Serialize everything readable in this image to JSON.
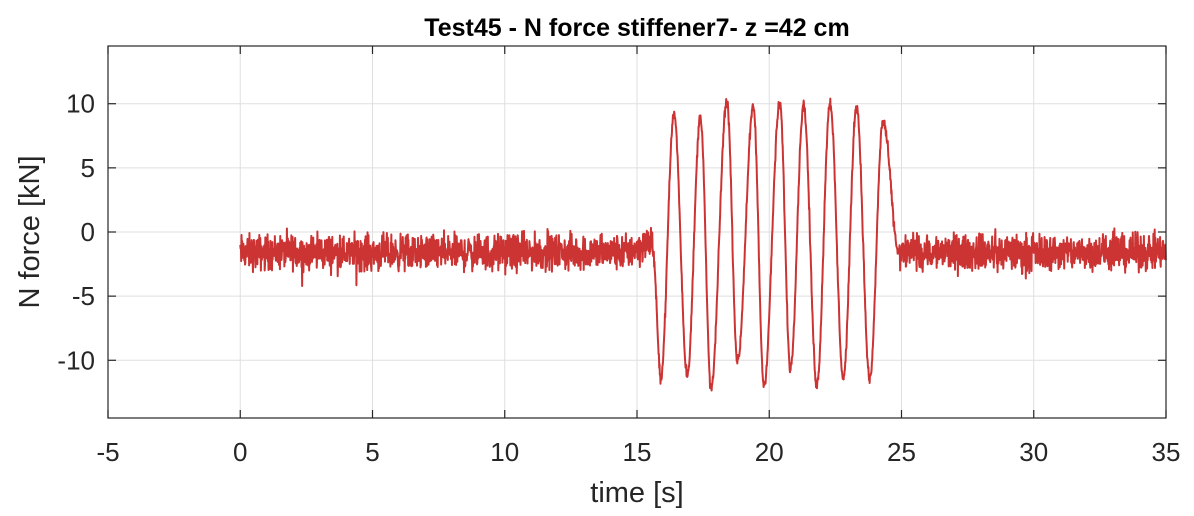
{
  "chart_data": {
    "type": "line",
    "title": "Test45 - N force stiffener7- z =42 cm",
    "xlabel": "time [s]",
    "ylabel": "N force [kN]",
    "xlim": [
      -5,
      35
    ],
    "ylim": [
      -14.5,
      14.5
    ],
    "xticks": [
      -5,
      0,
      5,
      10,
      15,
      20,
      25,
      30,
      35
    ],
    "yticks": [
      -10,
      -5,
      0,
      5,
      10
    ],
    "grid": true,
    "series_color": "#cc3333",
    "signal": {
      "start": 0,
      "end": 35,
      "baseline_mean": -1.6,
      "baseline_noise_range": [
        -4.5,
        2.3
      ],
      "oscillation_start": 15.6,
      "oscillation_end": 24.9,
      "oscillation_peaks": [
        {
          "t": 16.4,
          "value": 9.2
        },
        {
          "t": 17.4,
          "value": 9.0
        },
        {
          "t": 18.4,
          "value": 10.2
        },
        {
          "t": 19.4,
          "value": 9.7
        },
        {
          "t": 20.4,
          "value": 10.0
        },
        {
          "t": 21.3,
          "value": 9.9
        },
        {
          "t": 22.3,
          "value": 10.1
        },
        {
          "t": 23.3,
          "value": 9.8
        },
        {
          "t": 24.3,
          "value": 8.6
        }
      ],
      "oscillation_troughs": [
        {
          "t": 15.9,
          "value": -11.3
        },
        {
          "t": 16.9,
          "value": -11.1
        },
        {
          "t": 17.8,
          "value": -12.2
        },
        {
          "t": 18.8,
          "value": -10.1
        },
        {
          "t": 19.8,
          "value": -11.9
        },
        {
          "t": 20.8,
          "value": -10.6
        },
        {
          "t": 21.8,
          "value": -11.9
        },
        {
          "t": 22.8,
          "value": -11.4
        },
        {
          "t": 23.8,
          "value": -11.5
        }
      ]
    }
  }
}
